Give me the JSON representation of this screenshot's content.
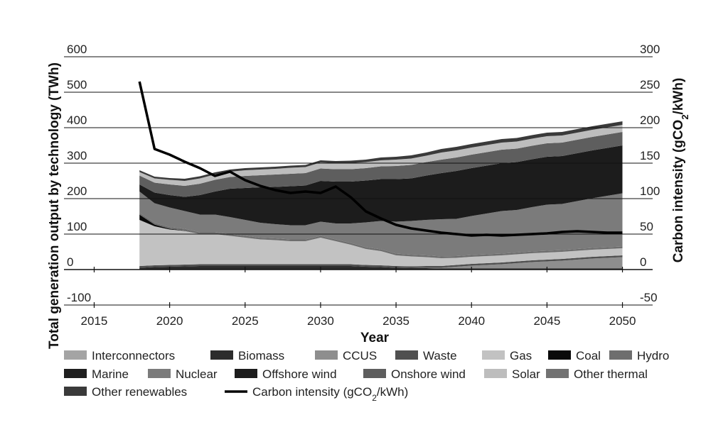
{
  "chart_data": {
    "type": "area",
    "xlabel": "Year",
    "ylabel": "Total generation output by technology (TWh)",
    "y2label_parts": [
      "Carbon intensity (gCO",
      "2",
      "/kWh)"
    ],
    "xlim": [
      2013,
      2052
    ],
    "ylim": [
      -100,
      600
    ],
    "y2lim": [
      -50,
      300
    ],
    "x_ticks": [
      "2015",
      "2020",
      "2025",
      "2030",
      "2035",
      "2040",
      "2045",
      "2050"
    ],
    "y_ticks": [
      "-100",
      "0",
      "100",
      "200",
      "300",
      "400",
      "500",
      "600"
    ],
    "y2_ticks": [
      "-50",
      "0",
      "50",
      "100",
      "150",
      "200",
      "250",
      "300"
    ],
    "grid": true,
    "legend_position": "bottom",
    "x": [
      2018,
      2019,
      2020,
      2021,
      2022,
      2023,
      2024,
      2025,
      2026,
      2027,
      2028,
      2029,
      2030,
      2031,
      2032,
      2033,
      2034,
      2035,
      2036,
      2037,
      2038,
      2039,
      2040,
      2041,
      2042,
      2043,
      2044,
      2045,
      2046,
      2047,
      2048,
      2049,
      2050
    ],
    "series": [
      {
        "name": "Interconnectors",
        "color": "#a4a4a4",
        "values": [
          0,
          0,
          0,
          0,
          0,
          0,
          0,
          0,
          0,
          0,
          0,
          0,
          0,
          0,
          0,
          0,
          0,
          0,
          0,
          0,
          0,
          0,
          0,
          0,
          0,
          0,
          0,
          0,
          0,
          0,
          0,
          0,
          0
        ]
      },
      {
        "name": "Biomass",
        "color": "#2c2c2c",
        "values": [
          5,
          7,
          8,
          9,
          10,
          10,
          10,
          10,
          10,
          10,
          10,
          10,
          10,
          10,
          10,
          8,
          7,
          5,
          4,
          4,
          3,
          3,
          3,
          3,
          3,
          3,
          3,
          3,
          3,
          3,
          3,
          3,
          3
        ]
      },
      {
        "name": "CCUS",
        "color": "#8e8e8e",
        "values": [
          0,
          0,
          0,
          0,
          0,
          0,
          0,
          0,
          0,
          0,
          0,
          0,
          0,
          0,
          0,
          0,
          0,
          0,
          0,
          1,
          2,
          5,
          8,
          10,
          12,
          15,
          18,
          20,
          22,
          25,
          28,
          30,
          32
        ]
      },
      {
        "name": "Waste",
        "color": "#505050",
        "values": [
          5,
          5,
          5,
          5,
          5,
          5,
          5,
          5,
          5,
          5,
          5,
          5,
          5,
          5,
          5,
          5,
          5,
          5,
          5,
          5,
          5,
          5,
          5,
          5,
          5,
          5,
          5,
          5,
          5,
          5,
          5,
          5,
          5
        ]
      },
      {
        "name": "Gas",
        "color": "#c2c2c2",
        "values": [
          130,
          110,
          100,
          95,
          85,
          85,
          80,
          75,
          70,
          68,
          65,
          65,
          75,
          65,
          55,
          45,
          40,
          30,
          28,
          25,
          22,
          20,
          20,
          20,
          20,
          20,
          20,
          20,
          20,
          20,
          20,
          20,
          20
        ]
      },
      {
        "name": "Coal",
        "color": "#0a0a0a",
        "values": [
          15,
          5,
          2,
          1,
          0,
          0,
          0,
          0,
          0,
          0,
          0,
          0,
          0,
          0,
          0,
          0,
          0,
          0,
          0,
          0,
          0,
          0,
          0,
          0,
          0,
          0,
          0,
          0,
          0,
          0,
          0,
          0,
          0
        ]
      },
      {
        "name": "Hydro",
        "color": "#6e6e6e",
        "values": [
          5,
          5,
          5,
          5,
          5,
          5,
          5,
          5,
          5,
          5,
          5,
          5,
          5,
          5,
          5,
          5,
          5,
          5,
          5,
          5,
          5,
          5,
          5,
          5,
          5,
          5,
          5,
          5,
          5,
          5,
          5,
          5,
          5
        ]
      },
      {
        "name": "Marine",
        "color": "#1f1f1f",
        "values": [
          0,
          0,
          0,
          0,
          0,
          0,
          0,
          0,
          0,
          0,
          0,
          0,
          0,
          0,
          0,
          0,
          0,
          0,
          0,
          0,
          0,
          0,
          0,
          0,
          0,
          0,
          0,
          0,
          0,
          0,
          0,
          0,
          0
        ]
      },
      {
        "name": "Nuclear",
        "color": "#7b7b7b",
        "values": [
          60,
          55,
          55,
          50,
          50,
          50,
          48,
          45,
          42,
          40,
          40,
          40,
          40,
          45,
          55,
          70,
          80,
          90,
          95,
          100,
          105,
          105,
          110,
          115,
          120,
          120,
          125,
          130,
          130,
          135,
          140,
          145,
          150
        ]
      },
      {
        "name": "Offshore wind",
        "color": "#1c1c1c",
        "values": [
          20,
          30,
          35,
          40,
          55,
          65,
          80,
          90,
          100,
          105,
          110,
          112,
          115,
          118,
          118,
          118,
          118,
          120,
          120,
          125,
          130,
          135,
          135,
          135,
          135,
          135,
          135,
          135,
          135,
          135,
          135,
          135,
          135
        ]
      },
      {
        "name": "Onshore wind",
        "color": "#5e5e5e",
        "values": [
          25,
          28,
          30,
          31,
          32,
          33,
          33,
          34,
          34,
          35,
          35,
          35,
          35,
          35,
          35,
          35,
          36,
          37,
          38,
          38,
          38,
          38,
          38,
          38,
          38,
          38,
          38,
          38,
          38,
          38,
          38,
          38,
          38
        ]
      },
      {
        "name": "Solar",
        "color": "#bdbdbd",
        "values": [
          10,
          12,
          13,
          14,
          15,
          15,
          15,
          16,
          16,
          16,
          17,
          17,
          17,
          17,
          17,
          17,
          17,
          18,
          18,
          18,
          20,
          20,
          20,
          20,
          20,
          20,
          20,
          20,
          20,
          20,
          20,
          20,
          20
        ]
      },
      {
        "name": "Other thermal",
        "color": "#727272",
        "values": [
          0,
          0,
          0,
          0,
          0,
          0,
          0,
          0,
          0,
          0,
          0,
          0,
          0,
          0,
          0,
          0,
          0,
          0,
          0,
          0,
          0,
          0,
          0,
          0,
          0,
          0,
          0,
          0,
          0,
          0,
          0,
          0,
          0
        ]
      },
      {
        "name": "Other renewables",
        "color": "#3a3a3a",
        "values": [
          5,
          5,
          5,
          6,
          6,
          6,
          6,
          6,
          6,
          6,
          6,
          6,
          6,
          6,
          7,
          7,
          8,
          8,
          9,
          9,
          10,
          10,
          10,
          10,
          10,
          10,
          10,
          10,
          10,
          10,
          10,
          10,
          10
        ]
      }
    ],
    "line_series": {
      "name_parts": [
        "Carbon intensity (gCO",
        "2",
        "/kWh)"
      ],
      "axis": "right",
      "color": "#000000",
      "x": [
        2018,
        2019,
        2020,
        2021,
        2022,
        2023,
        2024,
        2025,
        2026,
        2027,
        2028,
        2029,
        2030,
        2031,
        2032,
        2033,
        2034,
        2035,
        2036,
        2037,
        2038,
        2039,
        2040,
        2041,
        2042,
        2043,
        2044,
        2045,
        2046,
        2047,
        2048,
        2049,
        2050
      ],
      "values": [
        265,
        170,
        162,
        152,
        143,
        132,
        138,
        126,
        118,
        112,
        108,
        110,
        108,
        117,
        102,
        82,
        72,
        63,
        58,
        55,
        52,
        50,
        48,
        49,
        48,
        49,
        50,
        51,
        53,
        54,
        53,
        52,
        52
      ]
    }
  }
}
